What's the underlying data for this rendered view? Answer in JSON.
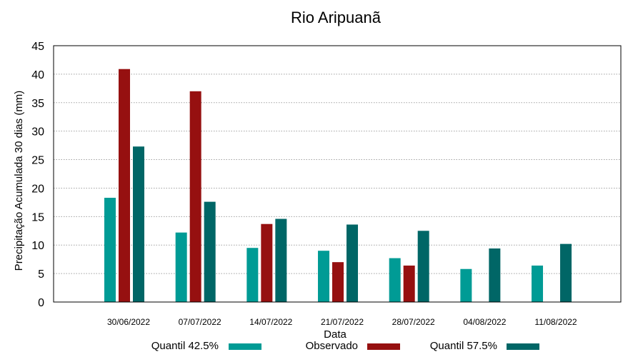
{
  "chart_data": {
    "type": "bar",
    "title": "Rio Aripuanã",
    "xlabel": "Data",
    "ylabel": "Precipitação Acumulada 30 dias (mm)",
    "ylim": [
      0,
      45
    ],
    "yticks": [
      0,
      5,
      10,
      15,
      20,
      25,
      30,
      35,
      40,
      45
    ],
    "grid": true,
    "legend_position": "bottom",
    "categories": [
      "30/06/2022",
      "07/07/2022",
      "14/07/2022",
      "21/07/2022",
      "28/07/2022",
      "04/08/2022",
      "11/08/2022"
    ],
    "series": [
      {
        "name": "Quantil 42.5%",
        "color": "#009b95",
        "values": [
          18.3,
          12.2,
          9.5,
          9.0,
          7.7,
          5.8,
          6.4
        ]
      },
      {
        "name": "Observado",
        "color": "#961010",
        "values": [
          40.9,
          37.0,
          13.7,
          7.0,
          6.4,
          null,
          null
        ]
      },
      {
        "name": "Quantil 57.5%",
        "color": "#006666",
        "values": [
          27.3,
          17.6,
          14.6,
          13.6,
          12.5,
          9.4,
          10.2
        ]
      }
    ]
  }
}
